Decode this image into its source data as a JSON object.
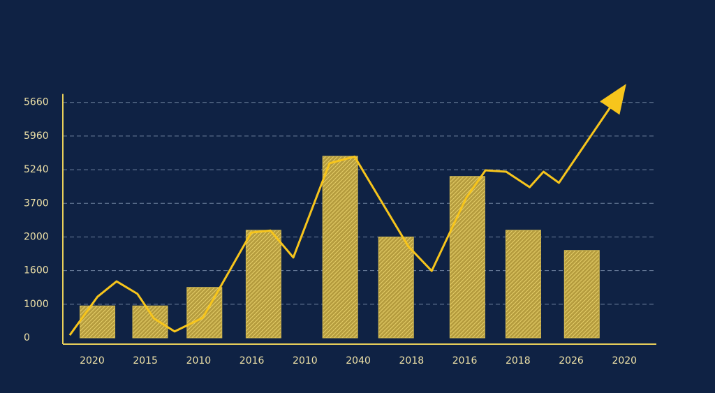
{
  "chart_data": {
    "type": "combo",
    "categories": [
      "2020",
      "2015",
      "2010",
      "2016",
      "2010",
      "2040",
      "2018",
      "2016",
      "2018",
      "2026",
      "2020"
    ],
    "xlim": [
      -0.55,
      10.6
    ],
    "ylim": [
      0,
      7.7
    ],
    "yticks": [
      {
        "value": 0,
        "label": "0"
      },
      {
        "value": 1,
        "label": "1000"
      },
      {
        "value": 2,
        "label": "1600"
      },
      {
        "value": 3,
        "label": "2000"
      },
      {
        "value": 4,
        "label": "3700"
      },
      {
        "value": 5,
        "label": "5240"
      },
      {
        "value": 6,
        "label": "5960"
      },
      {
        "value": 7,
        "label": "5660"
      }
    ],
    "grid": true,
    "series": [
      {
        "type": "bar",
        "color": "#d4bb52",
        "x": [
          0.1,
          1.09,
          2.11,
          3.22,
          4.66,
          5.71,
          7.05,
          8.1,
          9.2
        ],
        "values": [
          0.95,
          0.95,
          1.5,
          3.2,
          5.4,
          3.0,
          4.8,
          3.2,
          2.6
        ]
      },
      {
        "type": "line",
        "color": "#f7c51c",
        "x": [
          -0.42,
          0.1,
          0.46,
          0.85,
          1.16,
          1.55,
          2.08,
          2.99,
          3.35,
          3.78,
          4.46,
          4.93,
          5.94,
          6.38,
          7.03,
          7.39,
          7.78,
          8.22,
          8.48,
          8.77,
          9.99
        ],
        "values": [
          0.08,
          1.22,
          1.68,
          1.31,
          0.58,
          0.19,
          0.6,
          3.13,
          3.19,
          2.39,
          5.19,
          5.39,
          2.72,
          1.99,
          4.17,
          4.98,
          4.94,
          4.48,
          4.94,
          4.61,
          7.45
        ]
      }
    ]
  }
}
